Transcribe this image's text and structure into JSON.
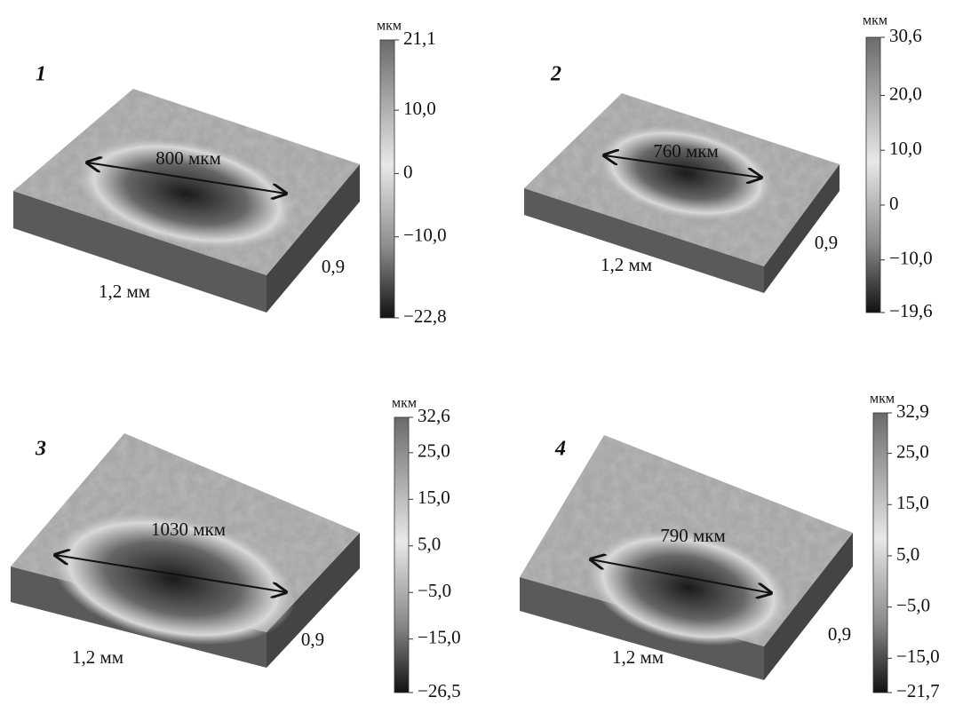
{
  "panels": [
    {
      "number": "1",
      "measurement": "800 мкм",
      "x_label": "1,2 мм",
      "y_label": "0,9",
      "colorbar": {
        "unit": "мкм",
        "lim": [
          -22.8,
          21.1
        ],
        "ticks": [
          {
            "value": 21.1,
            "label": "21,1"
          },
          {
            "value": 10.0,
            "label": "10,0"
          },
          0,
          {
            "value": -10.0,
            "label": "−10,0"
          },
          {
            "value": -22.8,
            "label": "−22,8"
          }
        ]
      }
    },
    {
      "number": "2",
      "measurement": "760 мкм",
      "x_label": "1,2 мм",
      "y_label": "0,9",
      "colorbar": {
        "unit": "мкм",
        "lim": [
          -19.6,
          30.6
        ],
        "ticks": [
          {
            "value": 30.6,
            "label": "30,6"
          },
          {
            "value": 20.0,
            "label": "20,0"
          },
          {
            "value": 10.0,
            "label": "10,0"
          },
          0,
          {
            "value": -10.0,
            "label": "−10,0"
          },
          {
            "value": -19.6,
            "label": "−19,6"
          }
        ]
      }
    },
    {
      "number": "3",
      "measurement": "1030 мкм",
      "x_label": "1,2 мм",
      "y_label": "0,9",
      "colorbar": {
        "unit": "мкм",
        "lim": [
          -26.5,
          32.6
        ],
        "ticks": [
          {
            "value": 32.6,
            "label": "32,6"
          },
          {
            "value": 25.0,
            "label": "25,0"
          },
          {
            "value": 15.0,
            "label": "15,0"
          },
          {
            "value": 5.0,
            "label": "5,0"
          },
          {
            "value": -5.0,
            "label": "−5,0"
          },
          {
            "value": -15.0,
            "label": "−15,0"
          },
          {
            "value": -26.5,
            "label": "−26,5"
          }
        ]
      }
    },
    {
      "number": "4",
      "measurement": "790 мкм",
      "x_label": "1,2 мм",
      "y_label": "0,9",
      "colorbar": {
        "unit": "мкм",
        "lim": [
          -21.7,
          32.9
        ],
        "ticks": [
          {
            "value": 32.9,
            "label": "32,9"
          },
          {
            "value": 25.0,
            "label": "25,0"
          },
          {
            "value": 15.0,
            "label": "15,0"
          },
          {
            "value": 5.0,
            "label": "5,0"
          },
          {
            "value": -5.0,
            "label": "−5,0"
          },
          {
            "value": -15.0,
            "label": "−15,0"
          },
          {
            "value": -21.7,
            "label": "−21,7"
          }
        ]
      }
    }
  ]
}
